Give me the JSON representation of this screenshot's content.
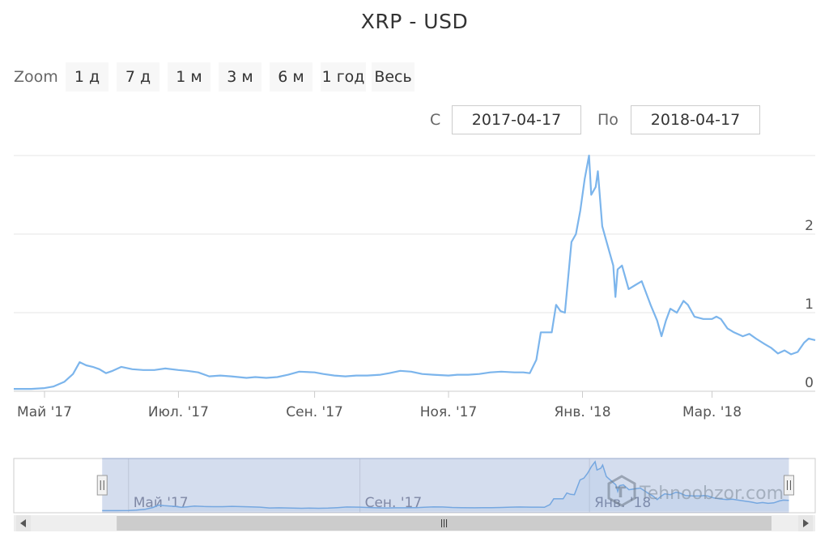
{
  "title": "XRP - USD",
  "zoom": {
    "label": "Zoom",
    "buttons": [
      "1 д",
      "7 д",
      "1 м",
      "3 м",
      "6 м",
      "1 год",
      "Весь"
    ]
  },
  "range": {
    "from_label": "С",
    "from_value": "2017-04-17",
    "to_label": "По",
    "to_value": "2018-04-17"
  },
  "watermark": "Tehnoobzor.com",
  "colors": {
    "line": "#7cb5ec",
    "grid": "#e6e6e6",
    "navigator_mask": "rgba(102,133,194,0.3)",
    "scrollbar": "#eeeeee"
  },
  "chart_data": {
    "type": "line",
    "title": "XRP - USD",
    "xlabel": "",
    "ylabel": "",
    "x_range": [
      "2017-04-17",
      "2018-04-17"
    ],
    "y_range": [
      0,
      3
    ],
    "y_ticks": [
      0,
      1,
      2
    ],
    "x_ticks": [
      {
        "date": "2017-05-01",
        "label": "Май '17"
      },
      {
        "date": "2017-07-01",
        "label": "Июл. '17"
      },
      {
        "date": "2017-09-01",
        "label": "Сен. '17"
      },
      {
        "date": "2017-11-01",
        "label": "Ноя. '17"
      },
      {
        "date": "2018-01-01",
        "label": "Янв. '18"
      },
      {
        "date": "2018-03-01",
        "label": "Мар. '18"
      }
    ],
    "grid": true,
    "series": [
      {
        "points": [
          [
            "2017-04-17",
            0.03
          ],
          [
            "2017-04-25",
            0.03
          ],
          [
            "2017-05-01",
            0.04
          ],
          [
            "2017-05-05",
            0.06
          ],
          [
            "2017-05-10",
            0.12
          ],
          [
            "2017-05-14",
            0.22
          ],
          [
            "2017-05-17",
            0.37
          ],
          [
            "2017-05-20",
            0.33
          ],
          [
            "2017-05-23",
            0.31
          ],
          [
            "2017-05-26",
            0.28
          ],
          [
            "2017-05-29",
            0.23
          ],
          [
            "2017-06-01",
            0.26
          ],
          [
            "2017-06-05",
            0.31
          ],
          [
            "2017-06-10",
            0.28
          ],
          [
            "2017-06-15",
            0.27
          ],
          [
            "2017-06-20",
            0.27
          ],
          [
            "2017-06-25",
            0.29
          ],
          [
            "2017-07-01",
            0.27
          ],
          [
            "2017-07-05",
            0.26
          ],
          [
            "2017-07-10",
            0.24
          ],
          [
            "2017-07-15",
            0.19
          ],
          [
            "2017-07-20",
            0.2
          ],
          [
            "2017-07-25",
            0.19
          ],
          [
            "2017-08-01",
            0.17
          ],
          [
            "2017-08-05",
            0.18
          ],
          [
            "2017-08-10",
            0.17
          ],
          [
            "2017-08-15",
            0.18
          ],
          [
            "2017-08-20",
            0.21
          ],
          [
            "2017-08-25",
            0.25
          ],
          [
            "2017-09-01",
            0.24
          ],
          [
            "2017-09-05",
            0.22
          ],
          [
            "2017-09-10",
            0.2
          ],
          [
            "2017-09-15",
            0.19
          ],
          [
            "2017-09-20",
            0.2
          ],
          [
            "2017-09-25",
            0.2
          ],
          [
            "2017-10-01",
            0.21
          ],
          [
            "2017-10-05",
            0.23
          ],
          [
            "2017-10-10",
            0.26
          ],
          [
            "2017-10-15",
            0.25
          ],
          [
            "2017-10-20",
            0.22
          ],
          [
            "2017-10-25",
            0.21
          ],
          [
            "2017-11-01",
            0.2
          ],
          [
            "2017-11-05",
            0.21
          ],
          [
            "2017-11-10",
            0.21
          ],
          [
            "2017-11-15",
            0.22
          ],
          [
            "2017-11-20",
            0.24
          ],
          [
            "2017-11-25",
            0.25
          ],
          [
            "2017-12-01",
            0.24
          ],
          [
            "2017-12-05",
            0.24
          ],
          [
            "2017-12-08",
            0.23
          ],
          [
            "2017-12-11",
            0.4
          ],
          [
            "2017-12-13",
            0.75
          ],
          [
            "2017-12-15",
            0.75
          ],
          [
            "2017-12-18",
            0.75
          ],
          [
            "2017-12-20",
            1.1
          ],
          [
            "2017-12-22",
            1.02
          ],
          [
            "2017-12-24",
            1.0
          ],
          [
            "2017-12-27",
            1.9
          ],
          [
            "2017-12-29",
            2.0
          ],
          [
            "2017-12-31",
            2.3
          ],
          [
            "2018-01-02",
            2.7
          ],
          [
            "2018-01-04",
            3.0
          ],
          [
            "2018-01-05",
            2.5
          ],
          [
            "2018-01-07",
            2.6
          ],
          [
            "2018-01-08",
            2.8
          ],
          [
            "2018-01-10",
            2.1
          ],
          [
            "2018-01-12",
            1.9
          ],
          [
            "2018-01-15",
            1.6
          ],
          [
            "2018-01-16",
            1.2
          ],
          [
            "2018-01-17",
            1.55
          ],
          [
            "2018-01-19",
            1.6
          ],
          [
            "2018-01-22",
            1.3
          ],
          [
            "2018-01-25",
            1.35
          ],
          [
            "2018-01-28",
            1.4
          ],
          [
            "2018-02-01",
            1.1
          ],
          [
            "2018-02-04",
            0.9
          ],
          [
            "2018-02-06",
            0.7
          ],
          [
            "2018-02-08",
            0.9
          ],
          [
            "2018-02-10",
            1.05
          ],
          [
            "2018-02-13",
            1.0
          ],
          [
            "2018-02-16",
            1.15
          ],
          [
            "2018-02-18",
            1.1
          ],
          [
            "2018-02-21",
            0.95
          ],
          [
            "2018-02-25",
            0.92
          ],
          [
            "2018-03-01",
            0.92
          ],
          [
            "2018-03-03",
            0.95
          ],
          [
            "2018-03-05",
            0.92
          ],
          [
            "2018-03-08",
            0.8
          ],
          [
            "2018-03-11",
            0.75
          ],
          [
            "2018-03-15",
            0.7
          ],
          [
            "2018-03-18",
            0.73
          ],
          [
            "2018-03-21",
            0.67
          ],
          [
            "2018-03-25",
            0.6
          ],
          [
            "2018-03-28",
            0.55
          ],
          [
            "2018-03-31",
            0.48
          ],
          [
            "2018-04-03",
            0.52
          ],
          [
            "2018-04-06",
            0.47
          ],
          [
            "2018-04-09",
            0.5
          ],
          [
            "2018-04-12",
            0.62
          ],
          [
            "2018-04-14",
            0.67
          ],
          [
            "2018-04-17",
            0.65
          ]
        ]
      }
    ],
    "navigator": {
      "x_range": [
        "2017-03-01",
        "2018-05-01"
      ],
      "selected_range": [
        "2017-04-17",
        "2018-04-17"
      ],
      "x_ticks": [
        {
          "date": "2017-05-01",
          "label": "Май '17"
        },
        {
          "date": "2017-09-01",
          "label": "Сен. '17"
        },
        {
          "date": "2018-01-01",
          "label": "Янв. '18"
        }
      ]
    }
  }
}
